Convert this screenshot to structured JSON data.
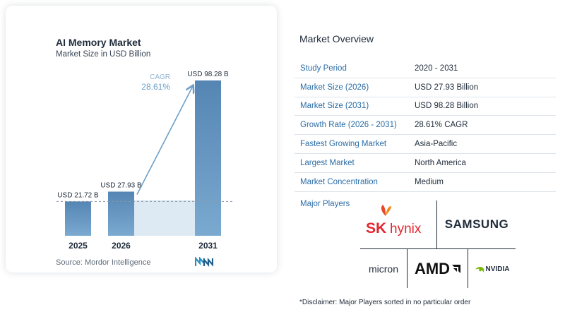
{
  "chart": {
    "title": "AI Memory Market",
    "subtitle": "Market Size in USD Billion",
    "source": "Source:  Mordor Intelligence",
    "cagr_label": "CAGR",
    "cagr_value": "28.61%"
  },
  "chart_data": {
    "type": "bar",
    "categories": [
      "2025",
      "2026",
      "2031"
    ],
    "values": [
      21.72,
      27.93,
      98.28
    ],
    "data_labels": [
      "USD 21.72 B",
      "USD 27.93 B",
      "USD 98.28 B"
    ],
    "ylim": [
      0,
      100
    ],
    "title": "AI Memory Market",
    "subtitle": "Market Size in USD Billion",
    "annotations": [
      "CAGR 28.61%"
    ],
    "colors": {
      "bar": "#6c9fc8",
      "bar_top": "#5585b3",
      "shade": "#dde9f3",
      "arrow": "#6c9fc8",
      "cagr_text": "#6c9fc8"
    }
  },
  "overview": {
    "title": "Market Overview",
    "rows": [
      {
        "label": "Study Period",
        "value": "2020 - 2031"
      },
      {
        "label": "Market Size (2026)",
        "value": "USD 27.93 Billion"
      },
      {
        "label": "Market Size (2031)",
        "value": "USD 98.28 Billion"
      },
      {
        "label": "Growth Rate (2026 - 2031)",
        "value": "28.61% CAGR"
      },
      {
        "label": "Fastest Growing Market",
        "value": "Asia-Pacific"
      },
      {
        "label": "Largest Market",
        "value": "North America"
      },
      {
        "label": "Market Concentration",
        "value": "Medium"
      }
    ]
  },
  "players": {
    "label": "Major Players",
    "logos": {
      "sk": "SK",
      "hynix": "hynix",
      "samsung": "SAMSUNG",
      "micron": "micron",
      "amd": "AMD",
      "nvidia": "NVIDIA"
    }
  },
  "disclaimer": "*Disclaimer: Major Players sorted in no particular order"
}
